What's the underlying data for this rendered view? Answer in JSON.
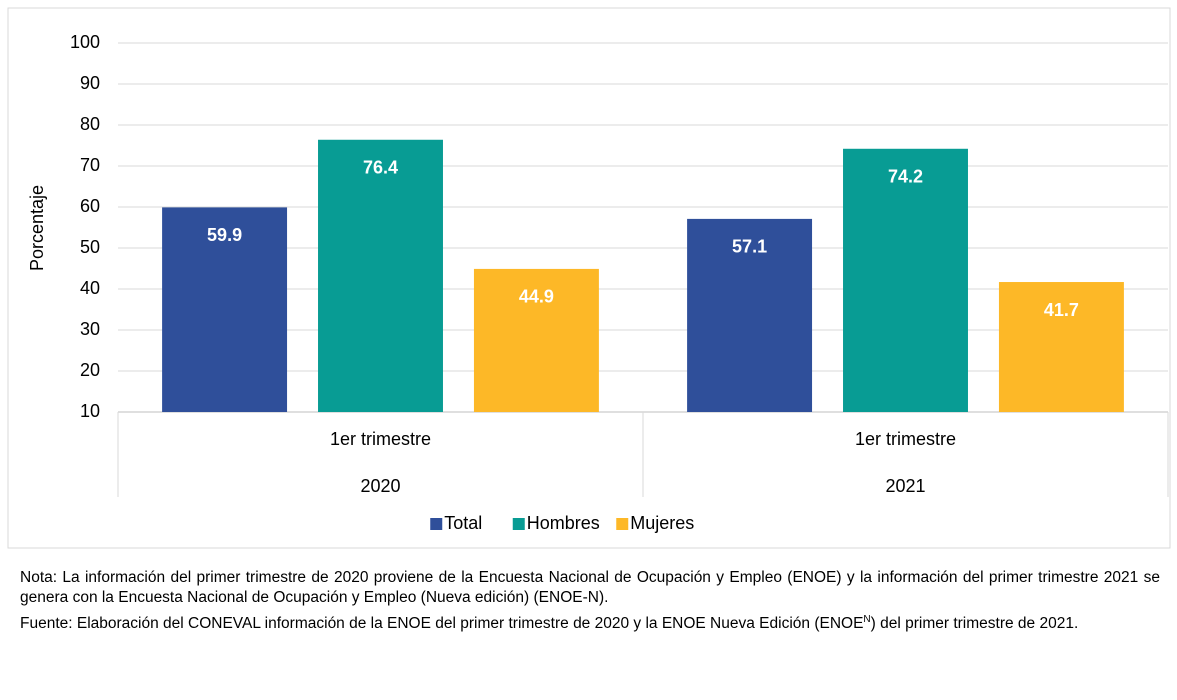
{
  "chart_data": {
    "type": "bar",
    "categories": [
      "1er trimestre",
      "1er trimestre"
    ],
    "category_groups": [
      "2020",
      "2021"
    ],
    "y_label": "Porcentaje",
    "ylim": [
      10,
      100
    ],
    "yticks": [
      10,
      20,
      30,
      40,
      50,
      60,
      70,
      80,
      90,
      100
    ],
    "grid": true,
    "legend": "bottom",
    "series": [
      {
        "name": "Total",
        "color": "#2f4f9a",
        "values": [
          59.9,
          57.1
        ]
      },
      {
        "name": "Hombres",
        "color": "#089c94",
        "values": [
          76.4,
          74.2
        ]
      },
      {
        "name": "Mujeres",
        "color": "#fdb827",
        "values": [
          44.9,
          41.7
        ]
      }
    ]
  },
  "notes": {
    "note": "Nota: La información del primer trimestre de 2020 proviene de la Encuesta Nacional de Ocupación y Empleo (ENOE)  y la información del primer trimestre 2021 se genera con la Encuesta Nacional de Ocupación y Empleo (Nueva edición) (ENOE-N).",
    "source": [
      "Fuente: Elaboración del CONEVAL información de la ENOE del primer trimestre de 2020 y la ENOE Nueva Edición (ENOE",
      "N",
      ") del primer trimestre de 2021."
    ]
  }
}
